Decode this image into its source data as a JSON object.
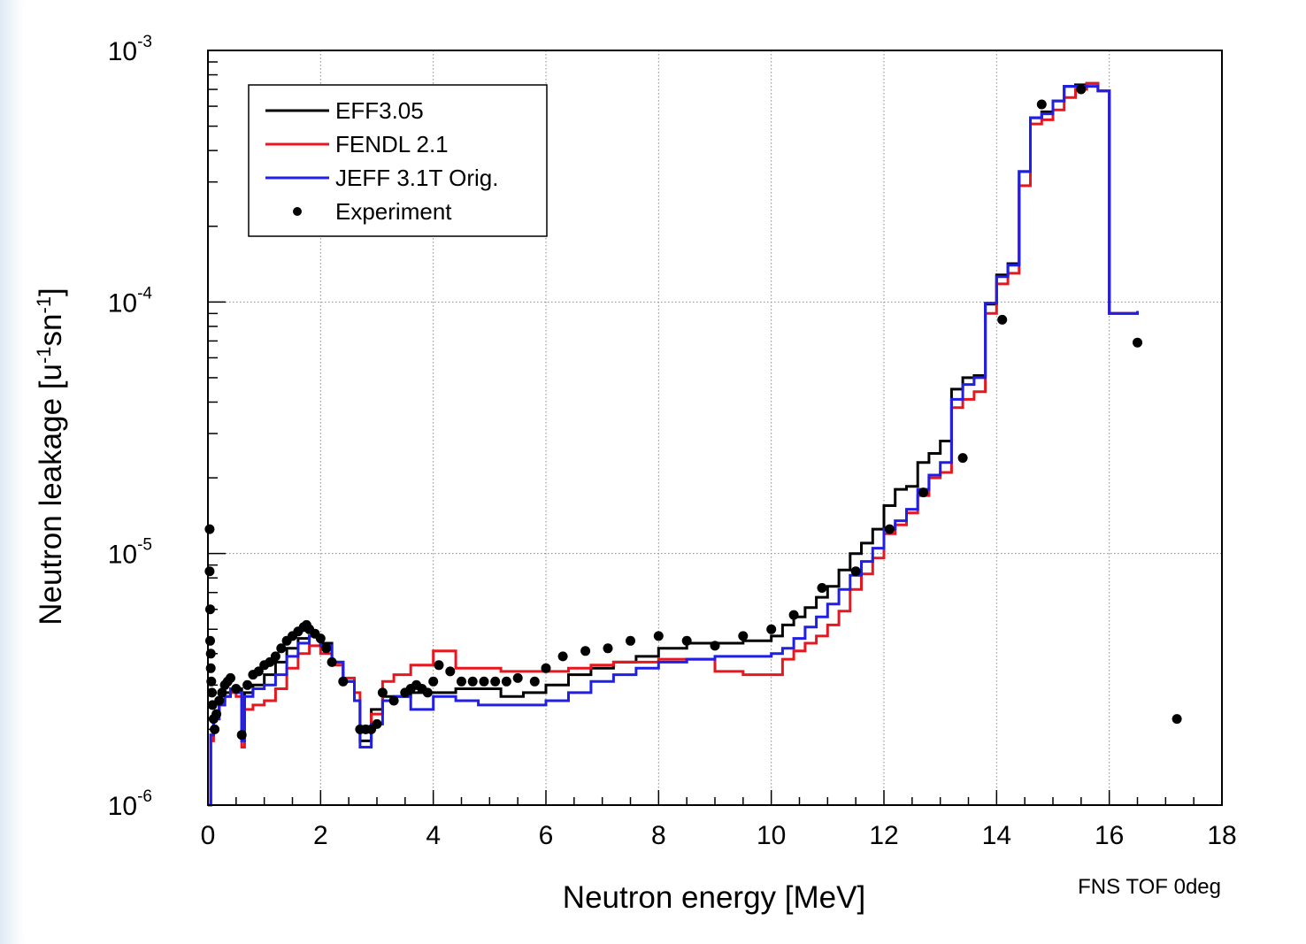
{
  "chart_data": {
    "type": "line",
    "xlabel": "Neutron energy [MeV]",
    "ylabel_parts": [
      "Neutron leakage [u",
      "-1",
      "sn",
      "-1",
      "]"
    ],
    "note": "FNS TOF 0deg",
    "xlim": [
      0,
      18
    ],
    "ylim": [
      1e-06,
      0.001
    ],
    "yscale": "log",
    "grid": true,
    "legend_position": "top-left",
    "x_ticks": [
      {
        "value": 0,
        "label": "0"
      },
      {
        "value": 2,
        "label": "2"
      },
      {
        "value": 4,
        "label": "4"
      },
      {
        "value": 6,
        "label": "6"
      },
      {
        "value": 8,
        "label": "8"
      },
      {
        "value": 10,
        "label": "10"
      },
      {
        "value": 12,
        "label": "12"
      },
      {
        "value": 14,
        "label": "14"
      },
      {
        "value": 16,
        "label": "16"
      },
      {
        "value": 18,
        "label": "18"
      }
    ],
    "y_ticks": [
      {
        "value": 1e-06,
        "base": "10",
        "exp": "-6"
      },
      {
        "value": 1e-05,
        "base": "10",
        "exp": "-5"
      },
      {
        "value": 0.0001,
        "base": "10",
        "exp": "-4"
      },
      {
        "value": 0.001,
        "base": "10",
        "exp": "-3"
      }
    ],
    "series": [
      {
        "name": "EFF3.05",
        "color": "#000000",
        "style": "step",
        "x": [
          0,
          0.05,
          0.1,
          0.2,
          0.3,
          0.4,
          0.5,
          0.6,
          0.65,
          0.8,
          1.0,
          1.2,
          1.4,
          1.6,
          1.8,
          2.0,
          2.2,
          2.4,
          2.6,
          2.7,
          2.9,
          3.1,
          3.3,
          3.6,
          4.0,
          4.4,
          4.8,
          5.2,
          5.6,
          6.0,
          6.4,
          6.8,
          7.2,
          7.6,
          8.0,
          8.5,
          9.0,
          9.5,
          10.0,
          10.2,
          10.4,
          10.6,
          10.8,
          11.0,
          11.2,
          11.4,
          11.6,
          11.8,
          12.0,
          12.2,
          12.4,
          12.6,
          12.8,
          13.0,
          13.2,
          13.4,
          13.6,
          13.8,
          14.0,
          14.2,
          14.4,
          14.6,
          14.8,
          15.0,
          15.2,
          15.4,
          15.6,
          15.8,
          16.0,
          16.5
        ],
        "y": [
          1e-06,
          1.9e-06,
          2.3e-06,
          2.6e-06,
          2.8e-06,
          2.9e-06,
          2.9e-06,
          1.8e-06,
          2.8e-06,
          3e-06,
          3.3e-06,
          3.7e-06,
          4.2e-06,
          4.6e-06,
          4.7e-06,
          4.4e-06,
          3.7e-06,
          3.1e-06,
          2.6e-06,
          1.8e-06,
          2.4e-06,
          2.7e-06,
          2.7e-06,
          2.8e-06,
          2.8e-06,
          2.9e-06,
          2.9e-06,
          2.7e-06,
          2.8e-06,
          3e-06,
          3.3e-06,
          3.5e-06,
          3.7e-06,
          3.9e-06,
          4.2e-06,
          4.4e-06,
          4.4e-06,
          4.5e-06,
          4.7e-06,
          5.2e-06,
          5.6e-06,
          6.1e-06,
          6.7e-06,
          7.4e-06,
          8.6e-06,
          1e-05,
          1.1e-05,
          1.25e-05,
          1.55e-05,
          1.8e-05,
          1.85e-05,
          2.3e-05,
          2.5e-05,
          2.8e-05,
          4.5e-05,
          5e-05,
          5.1e-05,
          9.8e-05,
          0.000128,
          0.000142,
          0.00033,
          0.00054,
          0.00057,
          0.00063,
          0.00072,
          0.00073,
          0.00074,
          0.00069,
          9e-05,
          9.2e-05
        ]
      },
      {
        "name": "FENDL 2.1",
        "color": "#e8171f",
        "style": "step",
        "x": [
          0,
          0.05,
          0.1,
          0.2,
          0.3,
          0.4,
          0.5,
          0.6,
          0.65,
          0.8,
          1.0,
          1.2,
          1.4,
          1.6,
          1.8,
          2.0,
          2.2,
          2.4,
          2.6,
          2.7,
          2.9,
          3.1,
          3.3,
          3.6,
          4.0,
          4.4,
          4.8,
          5.2,
          5.6,
          6.0,
          6.4,
          6.8,
          7.2,
          7.6,
          8.0,
          8.5,
          9.0,
          9.5,
          10.0,
          10.2,
          10.4,
          10.6,
          10.8,
          11.0,
          11.2,
          11.4,
          11.6,
          11.8,
          12.0,
          12.2,
          12.4,
          12.6,
          12.8,
          13.0,
          13.2,
          13.4,
          13.6,
          13.8,
          14.0,
          14.2,
          14.4,
          14.6,
          14.8,
          15.0,
          15.2,
          15.4,
          15.6,
          15.8,
          16.0,
          16.5
        ],
        "y": [
          1e-06,
          1.8e-06,
          2.2e-06,
          2.5e-06,
          2.7e-06,
          2.8e-06,
          2.7e-06,
          1.7e-06,
          2.4e-06,
          2.5e-06,
          2.6e-06,
          2.9e-06,
          3.5e-06,
          4e-06,
          4.3e-06,
          4e-06,
          3.6e-06,
          3.2e-06,
          2.8e-06,
          2e-06,
          2.3e-06,
          3.1e-06,
          3.3e-06,
          3.6e-06,
          4.1e-06,
          3.5e-06,
          3.5e-06,
          3.4e-06,
          3.4e-06,
          3.4e-06,
          3.5e-06,
          3.6e-06,
          3.7e-06,
          3.7e-06,
          3.8e-06,
          3.8e-06,
          3.4e-06,
          3.3e-06,
          3.3e-06,
          3.8e-06,
          4.1e-06,
          4.4e-06,
          4.7e-06,
          5.2e-06,
          5.9e-06,
          7.2e-06,
          8.3e-06,
          9.6e-06,
          1.2e-05,
          1.3e-05,
          1.45e-05,
          1.7e-05,
          2e-05,
          2.1e-05,
          3.8e-05,
          4.1e-05,
          4.4e-05,
          9e-05,
          0.000118,
          0.00013,
          0.00029,
          0.00051,
          0.00053,
          0.00058,
          0.00065,
          0.0007,
          0.00074,
          0.00069,
          9e-05,
          9.2e-05
        ]
      },
      {
        "name": "JEFF 3.1T Orig.",
        "color": "#1f1fe8",
        "style": "step",
        "x": [
          0,
          0.05,
          0.1,
          0.2,
          0.3,
          0.4,
          0.5,
          0.6,
          0.65,
          0.8,
          1.0,
          1.2,
          1.4,
          1.6,
          1.8,
          2.0,
          2.2,
          2.4,
          2.6,
          2.7,
          2.9,
          3.1,
          3.3,
          3.6,
          4.0,
          4.4,
          4.8,
          5.2,
          5.6,
          6.0,
          6.4,
          6.8,
          7.2,
          7.6,
          8.0,
          8.5,
          9.0,
          9.5,
          10.0,
          10.2,
          10.4,
          10.6,
          10.8,
          11.0,
          11.2,
          11.4,
          11.6,
          11.8,
          12.0,
          12.2,
          12.4,
          12.6,
          12.8,
          13.0,
          13.2,
          13.4,
          13.6,
          13.8,
          14.0,
          14.2,
          14.4,
          14.6,
          14.8,
          15.0,
          15.2,
          15.4,
          15.6,
          15.8,
          16.0,
          16.5
        ],
        "y": [
          1e-06,
          1.9e-06,
          2.2e-06,
          2.5e-06,
          2.7e-06,
          2.9e-06,
          2.8e-06,
          1.8e-06,
          2.7e-06,
          2.9e-06,
          3e-06,
          3.3e-06,
          3.9e-06,
          4.4e-06,
          4.7e-06,
          4.3e-06,
          3.7e-06,
          3.1e-06,
          2.6e-06,
          1.7e-06,
          2.1e-06,
          2.6e-06,
          2.7e-06,
          2.4e-06,
          2.7e-06,
          2.6e-06,
          2.5e-06,
          2.5e-06,
          2.5e-06,
          2.6e-06,
          2.8e-06,
          3.1e-06,
          3.3e-06,
          3.5e-06,
          3.7e-06,
          3.8e-06,
          3.9e-06,
          3.9e-06,
          4e-06,
          4.2e-06,
          4.6e-06,
          5.1e-06,
          5.6e-06,
          6.3e-06,
          7.2e-06,
          8.2e-06,
          9.3e-06,
          1.05e-05,
          1.25e-05,
          1.35e-05,
          1.5e-05,
          1.8e-05,
          2.05e-05,
          2.3e-05,
          4.1e-05,
          4.7e-05,
          5e-05,
          9.9e-05,
          0.000126,
          0.00014,
          0.00033,
          0.00054,
          0.00056,
          0.00063,
          0.00072,
          0.00072,
          0.00072,
          0.00069,
          9e-05,
          9.2e-05
        ]
      },
      {
        "name": "Experiment",
        "color": "#000000",
        "style": "points",
        "x": [
          0.03,
          0.03,
          0.04,
          0.04,
          0.05,
          0.05,
          0.06,
          0.07,
          0.08,
          0.1,
          0.12,
          0.15,
          0.2,
          0.25,
          0.3,
          0.35,
          0.4,
          0.5,
          0.6,
          0.7,
          0.8,
          0.9,
          1.0,
          1.1,
          1.2,
          1.3,
          1.4,
          1.5,
          1.6,
          1.7,
          1.75,
          1.8,
          1.9,
          2.0,
          2.1,
          2.2,
          2.4,
          2.7,
          2.8,
          2.9,
          3.0,
          3.1,
          3.3,
          3.5,
          3.6,
          3.7,
          3.8,
          3.9,
          4.0,
          4.1,
          4.3,
          4.5,
          4.7,
          4.9,
          5.1,
          5.3,
          5.5,
          5.8,
          6.0,
          6.3,
          6.7,
          7.1,
          7.5,
          8.0,
          8.5,
          9.0,
          9.5,
          10.0,
          10.4,
          10.9,
          11.5,
          12.1,
          12.7,
          13.4,
          14.1,
          14.8,
          15.5,
          16.5,
          17.2
        ],
        "y": [
          1.25e-05,
          8.5e-06,
          6e-06,
          4.5e-06,
          4e-06,
          3.5e-06,
          3.1e-06,
          2.8e-06,
          2.5e-06,
          2.2e-06,
          2e-06,
          2.3e-06,
          2.6e-06,
          2.8e-06,
          3e-06,
          3.1e-06,
          3.2e-06,
          2.9e-06,
          1.9e-06,
          3e-06,
          3.3e-06,
          3.4e-06,
          3.6e-06,
          3.7e-06,
          3.9e-06,
          4.2e-06,
          4.5e-06,
          4.7e-06,
          4.9e-06,
          5.1e-06,
          5.2e-06,
          5e-06,
          4.8e-06,
          4.6e-06,
          4.2e-06,
          3.7e-06,
          3.1e-06,
          2e-06,
          2e-06,
          2e-06,
          2.1e-06,
          2.8e-06,
          2.6e-06,
          2.8e-06,
          2.9e-06,
          3e-06,
          2.9e-06,
          2.8e-06,
          3.1e-06,
          3.6e-06,
          3.4e-06,
          3.1e-06,
          3.1e-06,
          3.1e-06,
          3.1e-06,
          3.1e-06,
          3.2e-06,
          3.1e-06,
          3.5e-06,
          3.9e-06,
          4.1e-06,
          4.2e-06,
          4.5e-06,
          4.7e-06,
          4.5e-06,
          4.3e-06,
          4.7e-06,
          5e-06,
          5.7e-06,
          7.3e-06,
          8.5e-06,
          1.25e-05,
          1.75e-05,
          2.4e-05,
          8.5e-05,
          0.00061,
          0.0007,
          6.9e-05,
          2.2e-06
        ]
      }
    ]
  }
}
